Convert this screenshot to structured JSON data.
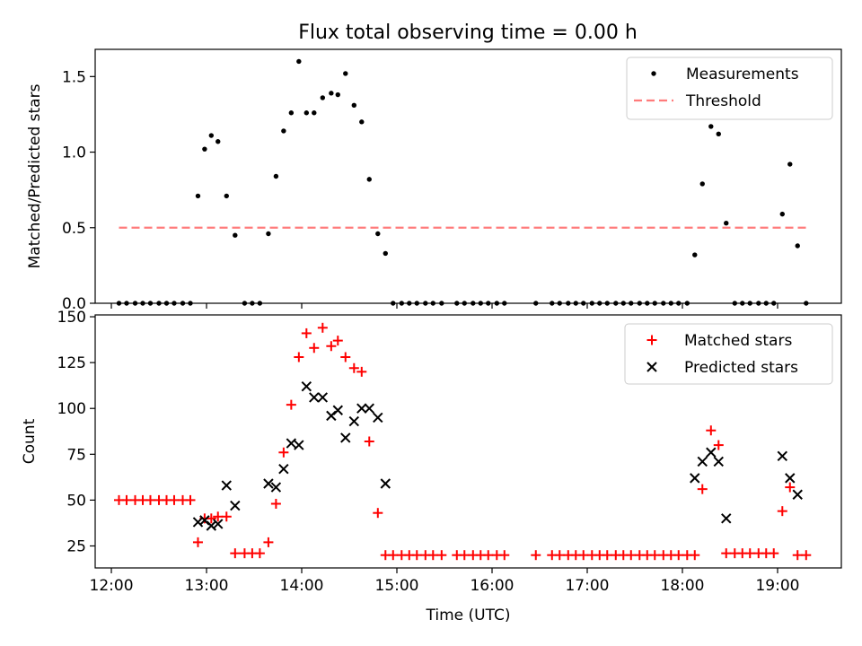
{
  "figure": {
    "title": "Flux total observing time = 0.00 h"
  },
  "chart_data": [
    {
      "type": "scatter",
      "panel": "top",
      "title": "Flux total observing time = 0.00 h",
      "xlabel": "",
      "ylabel": "Matched/Predicted stars",
      "xlim": [
        11.83,
        19.67
      ],
      "ylim": [
        0,
        1.68
      ],
      "x_tick_labels": [
        "12:00",
        "13:00",
        "14:00",
        "15:00",
        "16:00",
        "17:00",
        "18:00",
        "19:00"
      ],
      "y_ticks": [
        0.0,
        0.5,
        1.0,
        1.5
      ],
      "y_tick_labels": [
        "0.0",
        "0.5",
        "1.0",
        "1.5"
      ],
      "legend_position": "top-right",
      "grid": false,
      "series": [
        {
          "name": "Measurements",
          "marker": "dot",
          "color": "#000000",
          "x": [
            12.08,
            12.16,
            12.25,
            12.33,
            12.41,
            12.5,
            12.58,
            12.66,
            12.75,
            12.83,
            12.91,
            12.98,
            13.05,
            13.12,
            13.21,
            13.3,
            13.4,
            13.48,
            13.56,
            13.65,
            13.73,
            13.81,
            13.89,
            13.97,
            14.05,
            14.13,
            14.22,
            14.31,
            14.38,
            14.46,
            14.55,
            14.63,
            14.71,
            14.8,
            14.88,
            14.96,
            15.05,
            15.13,
            15.21,
            15.3,
            15.38,
            15.47,
            15.63,
            15.71,
            15.8,
            15.88,
            15.96,
            16.05,
            16.13,
            16.46,
            16.63,
            16.71,
            16.8,
            16.88,
            16.96,
            17.05,
            17.13,
            17.21,
            17.3,
            17.38,
            17.46,
            17.55,
            17.63,
            17.71,
            17.8,
            17.88,
            17.96,
            18.05,
            18.13,
            18.21,
            18.3,
            18.38,
            18.46,
            18.55,
            18.63,
            18.71,
            18.8,
            18.88,
            18.96,
            19.05,
            19.13,
            19.21,
            19.3
          ],
          "y": [
            0,
            0,
            0,
            0,
            0,
            0,
            0,
            0,
            0,
            0,
            0.71,
            1.02,
            1.11,
            1.07,
            0.71,
            0.45,
            0,
            0,
            0,
            0.46,
            0.84,
            1.14,
            1.26,
            1.6,
            1.26,
            1.26,
            1.36,
            1.39,
            1.38,
            1.52,
            1.31,
            1.2,
            0.82,
            0.46,
            0.33,
            0,
            0,
            0,
            0,
            0,
            0,
            0,
            0,
            0,
            0,
            0,
            0,
            0,
            0,
            0,
            0,
            0,
            0,
            0,
            0,
            0,
            0,
            0,
            0,
            0,
            0,
            0,
            0,
            0,
            0,
            0,
            0,
            0,
            0.32,
            0.79,
            1.17,
            1.12,
            0.53,
            0,
            0,
            0,
            0,
            0,
            0,
            0.59,
            0.92,
            0.38,
            0
          ]
        },
        {
          "name": "Threshold",
          "marker": "dashed-line",
          "color": "#ff7b7b",
          "x": [
            12.08,
            19.3
          ],
          "y": [
            0.5,
            0.5
          ]
        }
      ]
    },
    {
      "type": "scatter",
      "panel": "bottom",
      "xlabel": "Time (UTC)",
      "ylabel": "Count",
      "xlim": [
        11.83,
        19.67
      ],
      "ylim": [
        13,
        151
      ],
      "x_ticks": [
        12,
        13,
        14,
        15,
        16,
        17,
        18,
        19
      ],
      "x_tick_labels": [
        "12:00",
        "13:00",
        "14:00",
        "15:00",
        "16:00",
        "17:00",
        "18:00",
        "19:00"
      ],
      "y_ticks": [
        25,
        50,
        75,
        100,
        125,
        150
      ],
      "y_tick_labels": [
        "25",
        "50",
        "75",
        "100",
        "125",
        "150"
      ],
      "legend_position": "top-right",
      "grid": false,
      "series": [
        {
          "name": "Matched stars",
          "marker": "plus",
          "color": "#ff0000",
          "x": [
            12.08,
            12.16,
            12.25,
            12.33,
            12.41,
            12.5,
            12.58,
            12.66,
            12.75,
            12.83,
            12.91,
            12.98,
            13.05,
            13.12,
            13.21,
            13.3,
            13.4,
            13.48,
            13.56,
            13.65,
            13.73,
            13.81,
            13.89,
            13.97,
            14.05,
            14.13,
            14.22,
            14.31,
            14.38,
            14.46,
            14.55,
            14.63,
            14.71,
            14.8,
            14.88,
            14.96,
            15.05,
            15.13,
            15.21,
            15.3,
            15.38,
            15.47,
            15.63,
            15.71,
            15.8,
            15.88,
            15.96,
            16.05,
            16.13,
            16.46,
            16.63,
            16.71,
            16.8,
            16.88,
            16.96,
            17.05,
            17.13,
            17.21,
            17.3,
            17.38,
            17.46,
            17.55,
            17.63,
            17.71,
            17.8,
            17.88,
            17.96,
            18.05,
            18.13,
            18.21,
            18.3,
            18.38,
            18.46,
            18.55,
            18.63,
            18.71,
            18.8,
            18.88,
            18.96,
            19.05,
            19.13,
            19.21,
            19.3
          ],
          "y": [
            50,
            50,
            50,
            50,
            50,
            50,
            50,
            50,
            50,
            50,
            27,
            40,
            40,
            41,
            41,
            21,
            21,
            21,
            21,
            27,
            48,
            76,
            102,
            128,
            141,
            133,
            144,
            134,
            137,
            128,
            122,
            120,
            82,
            43,
            20,
            20,
            20,
            20,
            20,
            20,
            20,
            20,
            20,
            20,
            20,
            20,
            20,
            20,
            20,
            20,
            20,
            20,
            20,
            20,
            20,
            20,
            20,
            20,
            20,
            20,
            20,
            20,
            20,
            20,
            20,
            20,
            20,
            20,
            20,
            56,
            88,
            80,
            21,
            21,
            21,
            21,
            21,
            21,
            21,
            44,
            57,
            20,
            20
          ]
        },
        {
          "name": "Predicted stars",
          "marker": "x",
          "color": "#000000",
          "x": [
            12.91,
            12.98,
            13.05,
            13.12,
            13.21,
            13.3,
            13.65,
            13.73,
            13.81,
            13.89,
            13.97,
            14.05,
            14.13,
            14.22,
            14.31,
            14.38,
            14.46,
            14.55,
            14.63,
            14.71,
            14.8,
            14.88,
            18.13,
            18.21,
            18.3,
            18.38,
            18.46,
            19.05,
            19.13,
            19.21
          ],
          "y": [
            38,
            39,
            36,
            37,
            58,
            47,
            59,
            57,
            67,
            81,
            80,
            112,
            106,
            106,
            96,
            99,
            84,
            93,
            100,
            100,
            95,
            59,
            62,
            71,
            76,
            71,
            40,
            74,
            62,
            53
          ]
        }
      ]
    }
  ]
}
